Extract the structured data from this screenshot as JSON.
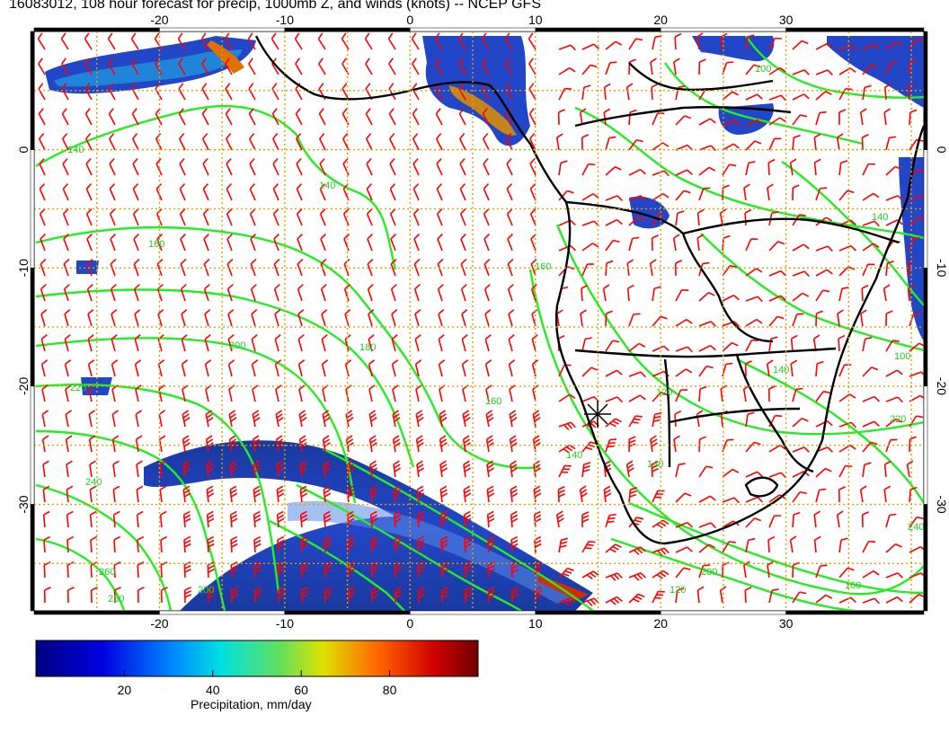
{
  "title": "16083012, 108 hour forecast for precip, 1000mb Z, and winds (knots) -- NCEP GFS",
  "map": {
    "lon_ticks": [
      "-20",
      "-10",
      "0",
      "10",
      "20",
      "30"
    ],
    "lon_values": [
      -20,
      -10,
      0,
      10,
      20,
      30
    ],
    "lat_ticks": [
      "0",
      "-10",
      "-20",
      "-30"
    ],
    "lat_values": [
      0,
      -10,
      -20,
      -30
    ],
    "lon_range": [
      -30,
      41
    ],
    "lat_range": [
      -39,
      10
    ],
    "contour_labels": [
      "140",
      "140",
      "160",
      "180",
      "200",
      "220",
      "240",
      "260",
      "280",
      "200",
      "160",
      "140",
      "120",
      "100",
      "140",
      "160",
      "200",
      "220",
      "240",
      "160",
      "140",
      "120",
      "100",
      "140"
    ],
    "colors": {
      "barb": "#ff0000",
      "contour": "#22ee22",
      "coast": "#000000",
      "grid": "#e0a000"
    }
  },
  "colorbar": {
    "label": "Precipitation, mm/day",
    "ticks": [
      "20",
      "40",
      "60",
      "80"
    ],
    "tick_values": [
      20,
      40,
      60,
      80
    ],
    "range": [
      0,
      100
    ]
  }
}
